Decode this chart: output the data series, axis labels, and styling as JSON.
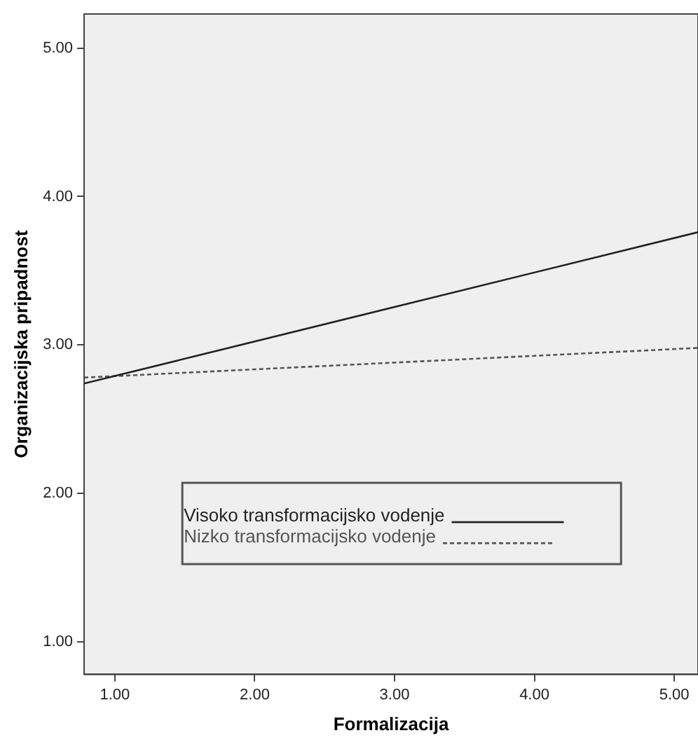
{
  "chart_data": {
    "type": "line",
    "xlabel": "Formalizacija",
    "ylabel": "Organizacijska pripadnost",
    "xlim": [
      0.78,
      5.17
    ],
    "ylim": [
      0.78,
      5.23
    ],
    "xticks": [
      {
        "value": 1,
        "label": "1.00"
      },
      {
        "value": 2,
        "label": "2.00"
      },
      {
        "value": 3,
        "label": "3.00"
      },
      {
        "value": 4,
        "label": "4.00"
      },
      {
        "value": 5,
        "label": "5.00"
      }
    ],
    "yticks": [
      {
        "value": 1,
        "label": "1.00"
      },
      {
        "value": 2,
        "label": "2.00"
      },
      {
        "value": 3,
        "label": "3.00"
      },
      {
        "value": 4,
        "label": "4.00"
      },
      {
        "value": 5,
        "label": "5.00"
      }
    ],
    "grid": false,
    "legend": "bottom",
    "marker": "none",
    "x": [
      0.78,
      5.17
    ],
    "series": [
      {
        "name": "Visoko transformacijsko vodenje",
        "color": "#222222",
        "line_style": "solid",
        "values": [
          2.74,
          3.76
        ]
      },
      {
        "name": "Nizko transformacijsko vodenje",
        "color": "#555555",
        "line_style": "dotted",
        "values": [
          2.78,
          2.98
        ]
      }
    ]
  }
}
